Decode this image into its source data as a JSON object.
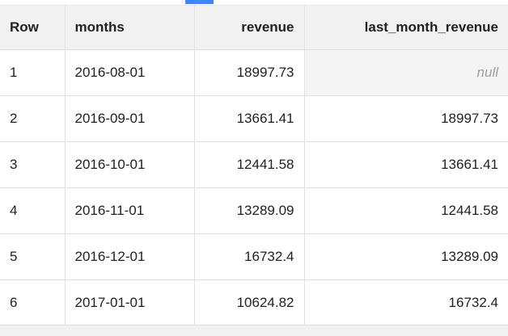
{
  "accent_color": "#4285f4",
  "results_table": {
    "columns": {
      "row": "Row",
      "months": "months",
      "revenue": "revenue",
      "last_month_revenue": "last_month_revenue"
    },
    "rows": [
      {
        "row": "1",
        "months": "2016-08-01",
        "revenue": "18997.73",
        "last_month_revenue": "null"
      },
      {
        "row": "2",
        "months": "2016-09-01",
        "revenue": "13661.41",
        "last_month_revenue": "18997.73"
      },
      {
        "row": "3",
        "months": "2016-10-01",
        "revenue": "12441.58",
        "last_month_revenue": "13661.41"
      },
      {
        "row": "4",
        "months": "2016-11-01",
        "revenue": "13289.09",
        "last_month_revenue": "12441.58"
      },
      {
        "row": "5",
        "months": "2016-12-01",
        "revenue": "16732.4",
        "last_month_revenue": "13289.09"
      },
      {
        "row": "6",
        "months": "2017-01-01",
        "revenue": "10624.82",
        "last_month_revenue": "16732.4"
      }
    ]
  }
}
